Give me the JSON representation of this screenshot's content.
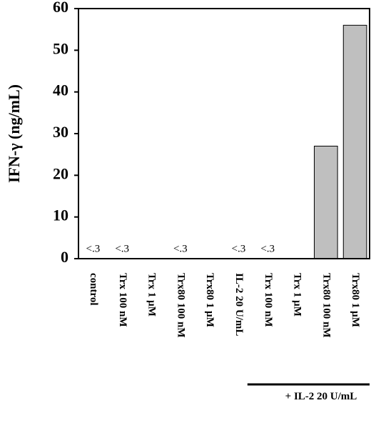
{
  "chart_data": {
    "type": "bar",
    "ylabel": "IFN-γ (ng/mL)",
    "categories": [
      "control",
      "Trx 100 nM",
      "Trx 1 µM",
      "Trx80 100 nM",
      "Trx80 1 µM",
      "IL-2 20 U/mL",
      "Trx 100 nM",
      "Trx 1 µM",
      "Trx80 100 nM",
      "Trx80 1 µM"
    ],
    "values": [
      0,
      0,
      0,
      0,
      0,
      0,
      0,
      0,
      27,
      56
    ],
    "value_labels": [
      "<.3",
      "<.3",
      null,
      "<.3",
      null,
      "<.3",
      "<.3",
      null,
      null,
      null
    ],
    "color": "#bfbfbf",
    "ylim": [
      0,
      60
    ],
    "yticks": [
      0,
      10,
      20,
      30,
      40,
      50,
      60
    ],
    "group_label": "+ IL-2 20 U/mL"
  }
}
